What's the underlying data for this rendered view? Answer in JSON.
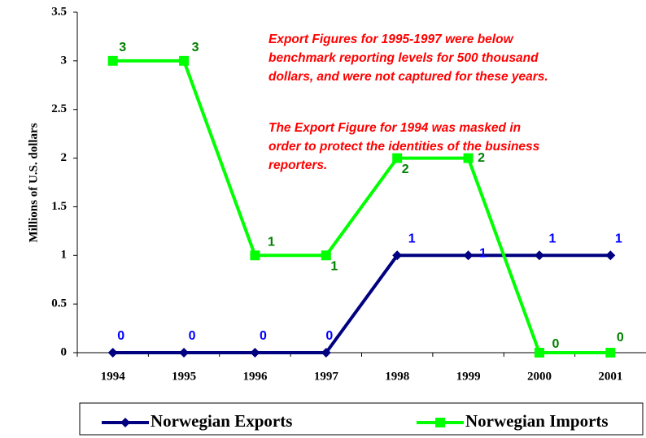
{
  "chart_data": {
    "type": "line",
    "y_label": "Millions of U.S. dollars",
    "categories": [
      "1994",
      "1995",
      "1996",
      "1997",
      "1998",
      "1999",
      "2000",
      "2001"
    ],
    "series": [
      {
        "name": "Norwegian Exports",
        "color": "#000080",
        "label_color": "#0000ff",
        "marker": "diamond",
        "values": [
          0,
          0,
          0,
          0,
          1,
          1,
          1,
          1
        ]
      },
      {
        "name": "Norwegian Imports",
        "color": "#00ff00",
        "label_color": "#008000",
        "marker": "square",
        "values": [
          3,
          3,
          1,
          1,
          2,
          2,
          0,
          0
        ]
      }
    ],
    "annotations": [
      [
        "Export Figures for 1995-1997 were below",
        "benchmark reporting levels for 500 thousand",
        "dollars, and were not captured for these years."
      ],
      [
        "The Export Figure for 1994 was masked in",
        "order to protect the identities of the business",
        "reporters."
      ]
    ],
    "ylim": [
      0,
      3.5
    ],
    "yticks": [
      0,
      0.5,
      1,
      1.5,
      2,
      2.5,
      3,
      3.5
    ],
    "grid": false,
    "legend": "bottom"
  }
}
